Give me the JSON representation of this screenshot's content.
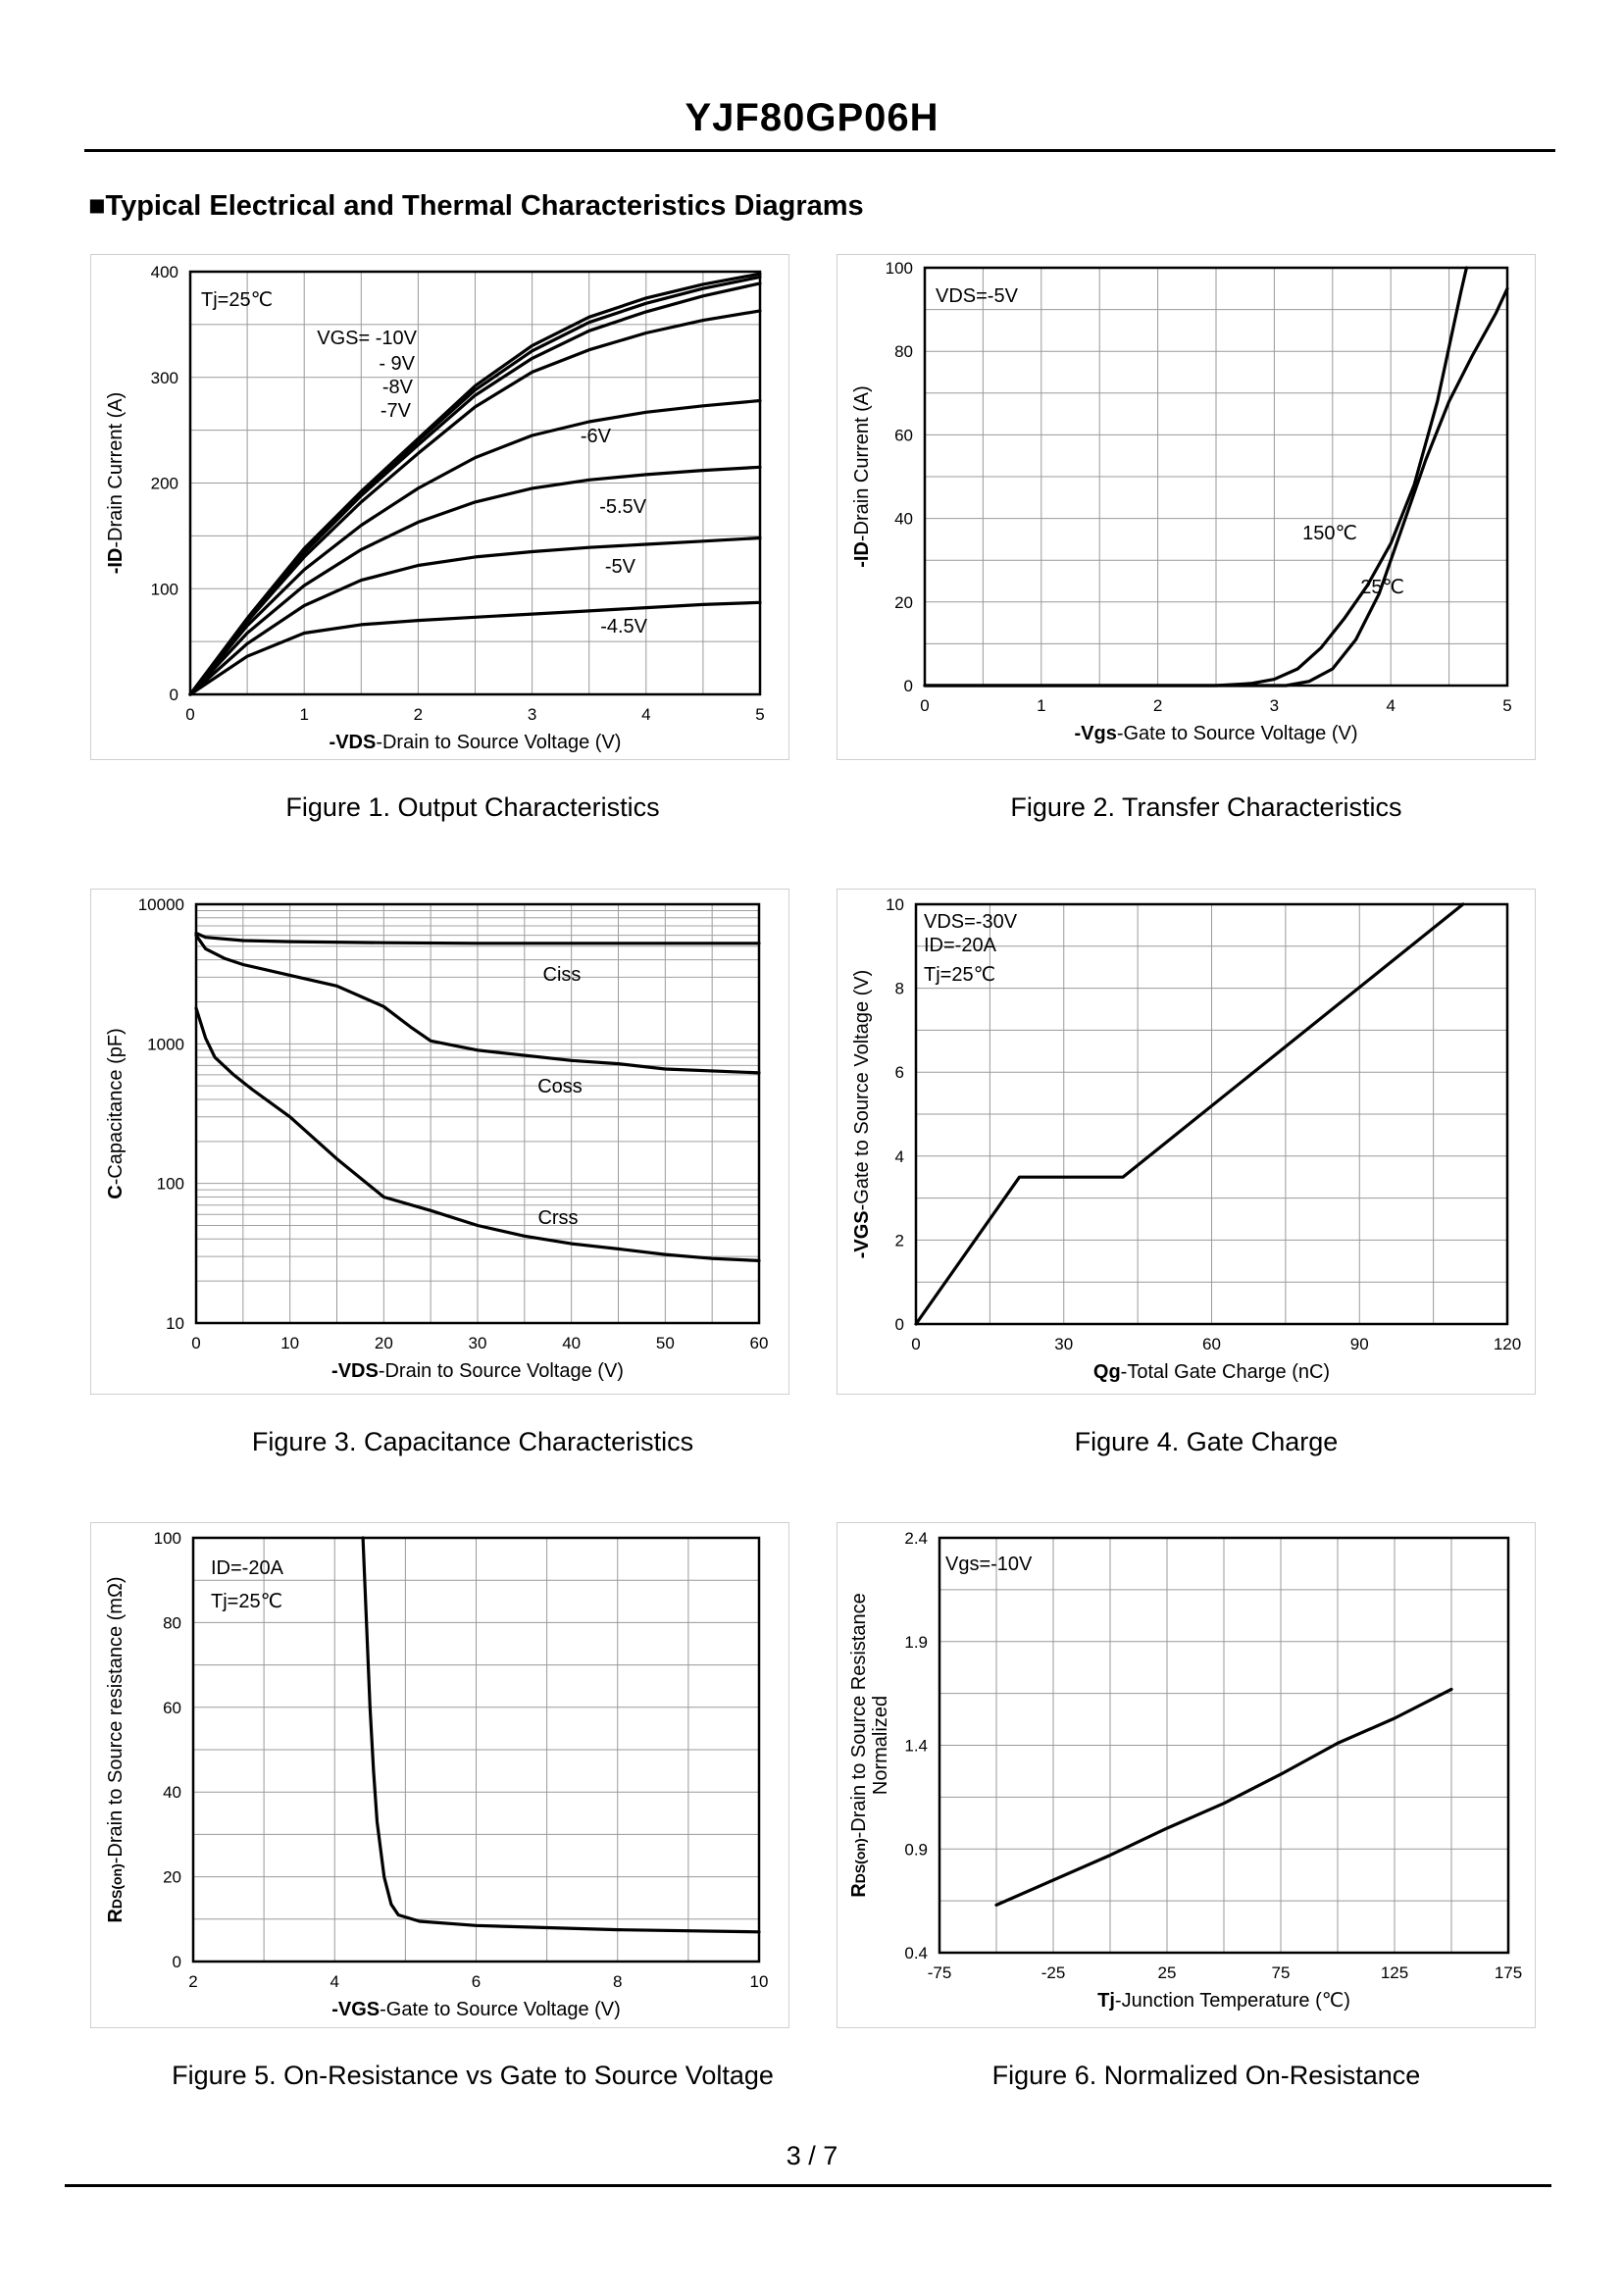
{
  "header": {
    "part_number": "YJF80GP06H"
  },
  "section_title": "■Typical Electrical and Thermal Characteristics Diagrams",
  "footer": {
    "page": "3 / 7"
  },
  "chart_data": [
    {
      "id": "fig1",
      "type": "line",
      "title": "Figure 1.  Output Characteristics",
      "xlabel_bold": "-VDS",
      "xlabel_rest": "-Drain to Source Voltage (V)",
      "ylabel_bold": "-ID",
      "ylabel_rest": "-Drain Current (A)",
      "xlim": [
        0,
        5
      ],
      "ylim": [
        0,
        400
      ],
      "xticks": [
        0,
        1,
        2,
        3,
        4,
        5
      ],
      "yticks": [
        0,
        100,
        200,
        300,
        400
      ],
      "annotations": [
        "Tj=25℃",
        "VGS= -10V",
        "- 9V",
        "-8V",
        "-7V",
        "-6V",
        "-5.5V",
        "-5V",
        "-4.5V"
      ],
      "series": [
        {
          "name": "VGS=-10V",
          "x": [
            0,
            0.5,
            1,
            1.5,
            2,
            2.5,
            3,
            3.5,
            4,
            4.5,
            5
          ],
          "y": [
            0,
            72,
            138,
            192,
            242,
            292,
            330,
            357,
            375,
            388,
            398
          ]
        },
        {
          "name": "VGS=-9V",
          "x": [
            0,
            0.5,
            1,
            1.5,
            2,
            2.5,
            3,
            3.5,
            4,
            4.5,
            5
          ],
          "y": [
            0,
            71,
            136,
            190,
            240,
            288,
            325,
            352,
            370,
            384,
            395
          ]
        },
        {
          "name": "VGS=-8V",
          "x": [
            0,
            0.5,
            1,
            1.5,
            2,
            2.5,
            3,
            3.5,
            4,
            4.5,
            5
          ],
          "y": [
            0,
            70,
            134,
            188,
            236,
            283,
            318,
            344,
            362,
            377,
            389
          ]
        },
        {
          "name": "VGS=-7V",
          "x": [
            0,
            0.5,
            1,
            1.5,
            2,
            2.5,
            3,
            3.5,
            4,
            4.5,
            5
          ],
          "y": [
            0,
            69,
            130,
            182,
            228,
            272,
            305,
            326,
            342,
            354,
            363
          ]
        },
        {
          "name": "VGS=-6V",
          "x": [
            0,
            0.5,
            1,
            1.5,
            2,
            2.5,
            3,
            3.5,
            4,
            4.5,
            5
          ],
          "y": [
            0,
            65,
            118,
            160,
            195,
            224,
            245,
            258,
            267,
            273,
            278
          ]
        },
        {
          "name": "VGS=-5.5V",
          "x": [
            0,
            0.5,
            1,
            1.5,
            2,
            2.5,
            3,
            3.5,
            4,
            4.5,
            5
          ],
          "y": [
            0,
            58,
            103,
            137,
            163,
            182,
            195,
            203,
            208,
            212,
            215
          ]
        },
        {
          "name": "VGS=-5V",
          "x": [
            0,
            0.5,
            1,
            1.5,
            2,
            2.5,
            3,
            3.5,
            4,
            4.5,
            5
          ],
          "y": [
            0,
            48,
            84,
            108,
            122,
            130,
            135,
            139,
            142,
            145,
            148
          ]
        },
        {
          "name": "VGS=-4.5V",
          "x": [
            0,
            0.5,
            1,
            1.5,
            2,
            2.5,
            3,
            3.5,
            4,
            4.5,
            5
          ],
          "y": [
            0,
            36,
            58,
            66,
            70,
            73,
            76,
            79,
            82,
            85,
            87
          ]
        }
      ]
    },
    {
      "id": "fig2",
      "type": "line",
      "title": "Figure 2.  Transfer Characteristics",
      "xlabel_bold": "-Vgs",
      "xlabel_rest": "-Gate to Source Voltage (V)",
      "ylabel_bold": "-ID",
      "ylabel_rest": "-Drain Current (A)",
      "xlim": [
        0,
        5
      ],
      "ylim": [
        0,
        100
      ],
      "xticks": [
        0,
        1,
        2,
        3,
        4,
        5
      ],
      "yticks": [
        0,
        20,
        40,
        60,
        80,
        100
      ],
      "annotations": [
        "VDS=-5V",
        "150℃",
        "25℃"
      ],
      "series": [
        {
          "name": "150℃",
          "x": [
            0,
            2.5,
            2.8,
            3,
            3.2,
            3.4,
            3.6,
            3.8,
            4,
            4.2,
            4.4,
            4.6,
            4.65
          ],
          "y": [
            0,
            0,
            0.5,
            1.5,
            4,
            9,
            16,
            24,
            34,
            48,
            68,
            94,
            100
          ]
        },
        {
          "name": "25℃",
          "x": [
            0,
            3.1,
            3.3,
            3.5,
            3.7,
            3.9,
            4.1,
            4.3,
            4.5,
            4.7,
            4.9,
            5
          ],
          "y": [
            0,
            0,
            1,
            4,
            11,
            22,
            38,
            54,
            68,
            79,
            89,
            95
          ]
        }
      ]
    },
    {
      "id": "fig3",
      "type": "line",
      "yscale": "log",
      "title": "Figure 3.  Capacitance Characteristics",
      "xlabel_bold": "-VDS",
      "xlabel_rest": "-Drain to Source Voltage (V)",
      "ylabel_bold": "C",
      "ylabel_rest": "-Capacitance (pF)",
      "xlim": [
        0,
        60
      ],
      "ylim": [
        10,
        10000
      ],
      "xticks": [
        0,
        10,
        20,
        30,
        40,
        50,
        60
      ],
      "yticks": [
        10,
        100,
        1000,
        10000
      ],
      "annotations": [
        "Ciss",
        "Coss",
        "Crss"
      ],
      "series": [
        {
          "name": "Ciss",
          "x": [
            0,
            1,
            5,
            10,
            20,
            30,
            40,
            50,
            60
          ],
          "y": [
            6200,
            5800,
            5500,
            5400,
            5300,
            5250,
            5250,
            5250,
            5250
          ]
        },
        {
          "name": "Coss",
          "x": [
            0,
            1,
            3,
            5,
            10,
            15,
            20,
            23,
            25,
            30,
            40,
            45,
            50,
            60
          ],
          "y": [
            6000,
            4800,
            4100,
            3700,
            3100,
            2600,
            1850,
            1300,
            1050,
            900,
            760,
            720,
            660,
            620
          ]
        },
        {
          "name": "Crss",
          "x": [
            0,
            1,
            2,
            4,
            6,
            10,
            15,
            20,
            25,
            30,
            35,
            40,
            45,
            50,
            55,
            60
          ],
          "y": [
            1800,
            1100,
            800,
            600,
            470,
            300,
            150,
            80,
            64,
            50,
            42,
            37,
            34,
            31,
            29,
            28
          ]
        }
      ]
    },
    {
      "id": "fig4",
      "type": "line",
      "title": "Figure 4.  Gate Charge",
      "xlabel_bold": "Qg",
      "xlabel_rest": "-Total Gate Charge (nC)",
      "ylabel_bold": "-VGS",
      "ylabel_rest": "-Gate to Source Voltage (V)",
      "xlim": [
        0,
        120
      ],
      "ylim": [
        0,
        10
      ],
      "xticks": [
        0,
        30,
        60,
        90,
        120
      ],
      "yticks": [
        0,
        2,
        4,
        6,
        8,
        10
      ],
      "annotations": [
        "VDS=-30V",
        "ID=-20A",
        "Tj=25℃"
      ],
      "series": [
        {
          "name": "VGS",
          "x": [
            0,
            21,
            42,
            111
          ],
          "y": [
            0,
            3.5,
            3.5,
            10
          ]
        }
      ]
    },
    {
      "id": "fig5",
      "type": "line",
      "title": "Figure 5.  On-Resistance vs Gate to Source Voltage",
      "xlabel_bold": "-VGS",
      "xlabel_rest": "-Gate to Source Voltage (V)",
      "ylabel_bold": "R",
      "ylabel_sub": "DS(on)",
      "ylabel_rest": "-Drain to Source resistance (mΩ)",
      "xlim": [
        2,
        10
      ],
      "ylim": [
        0,
        100
      ],
      "xticks": [
        2,
        4,
        6,
        8,
        10
      ],
      "yticks": [
        0,
        20,
        40,
        60,
        80,
        100
      ],
      "annotations": [
        "ID=-20A",
        "Tj=25℃"
      ],
      "series": [
        {
          "name": "RDS(on)",
          "x": [
            4.4,
            4.45,
            4.5,
            4.55,
            4.6,
            4.7,
            4.8,
            4.9,
            5.2,
            6,
            8,
            10
          ],
          "y": [
            100,
            80,
            60,
            45,
            33,
            20,
            13.5,
            11,
            9.5,
            8.5,
            7.5,
            7
          ]
        }
      ]
    },
    {
      "id": "fig6",
      "type": "line",
      "title": "Figure 6.  Normalized On-Resistance",
      "xlabel_bold": "Tj",
      "xlabel_rest": "-Junction  Temperature  (℃)",
      "ylabel_bold": "R",
      "ylabel_sub": "DS(on)",
      "ylabel_rest": "-Drain to Source Resistance",
      "ylabel_line2": "Normalized",
      "xlim": [
        -75,
        175
      ],
      "ylim": [
        0.4,
        2.4
      ],
      "xticks": [
        -75,
        -25,
        25,
        75,
        125,
        175
      ],
      "yticks": [
        0.4,
        0.9,
        1.4,
        1.9,
        2.4
      ],
      "annotations": [
        "Vgs=-10V"
      ],
      "series": [
        {
          "name": "Normalized RDS(on)",
          "x": [
            -50,
            0,
            25,
            50,
            75,
            100,
            125,
            150
          ],
          "y": [
            0.63,
            0.87,
            1.0,
            1.12,
            1.26,
            1.41,
            1.53,
            1.67
          ]
        }
      ]
    }
  ]
}
